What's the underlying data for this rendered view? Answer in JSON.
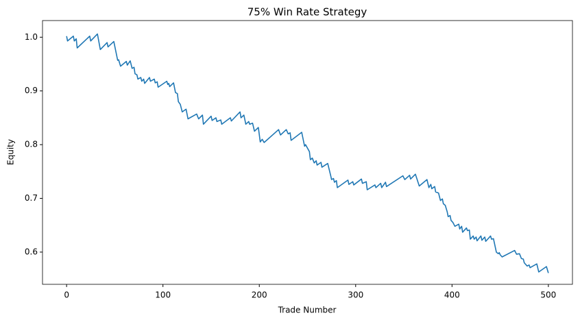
{
  "chart_data": {
    "type": "line",
    "title": "75% Win Rate Strategy",
    "x_label": "Trade Number",
    "y_label": "Equity",
    "x": [
      0,
      1,
      7,
      8,
      10,
      11,
      24,
      25,
      32,
      35,
      42,
      43,
      49,
      53,
      54,
      56,
      62,
      63,
      66,
      68,
      70,
      71,
      73,
      74,
      77,
      78,
      80,
      81,
      86,
      87,
      91,
      92,
      94,
      95,
      104,
      105,
      106,
      107,
      111,
      113,
      115,
      116,
      118,
      120,
      124,
      126,
      135,
      137,
      141,
      142,
      150,
      151,
      155,
      156,
      160,
      161,
      170,
      171,
      180,
      181,
      184,
      186,
      189,
      190,
      193,
      195,
      199,
      201,
      203,
      205,
      220,
      222,
      228,
      230,
      232,
      233,
      244,
      247,
      248,
      252,
      253,
      255,
      257,
      259,
      260,
      264,
      265,
      271,
      274,
      275,
      277,
      278,
      280,
      281,
      292,
      293,
      297,
      298,
      306,
      307,
      311,
      312,
      320,
      321,
      326,
      327,
      331,
      332,
      349,
      351,
      356,
      357,
      362,
      366,
      374,
      376,
      378,
      379,
      382,
      383,
      386,
      388,
      390,
      391,
      393,
      395,
      396,
      398,
      399,
      401,
      403,
      407,
      408,
      410,
      411,
      415,
      416,
      418,
      419,
      422,
      423,
      425,
      426,
      430,
      431,
      434,
      435,
      440,
      441,
      443,
      446,
      448,
      449,
      450,
      452,
      465,
      467,
      470,
      472,
      474,
      475,
      478,
      480,
      481,
      488,
      490,
      498,
      500
    ],
    "series": [
      {
        "name": "Equity",
        "color": "#1f77b4",
        "values": [
          1.002,
          0.993,
          1.002,
          0.993,
          0.997,
          0.98,
          1.002,
          0.993,
          1.006,
          0.977,
          0.99,
          0.982,
          0.992,
          0.957,
          0.958,
          0.946,
          0.955,
          0.948,
          0.956,
          0.942,
          0.944,
          0.932,
          0.93,
          0.922,
          0.925,
          0.918,
          0.922,
          0.914,
          0.925,
          0.918,
          0.922,
          0.915,
          0.917,
          0.907,
          0.918,
          0.912,
          0.914,
          0.908,
          0.915,
          0.897,
          0.895,
          0.88,
          0.875,
          0.861,
          0.866,
          0.848,
          0.857,
          0.848,
          0.855,
          0.838,
          0.853,
          0.845,
          0.85,
          0.843,
          0.846,
          0.838,
          0.85,
          0.844,
          0.861,
          0.85,
          0.855,
          0.838,
          0.843,
          0.838,
          0.84,
          0.825,
          0.832,
          0.805,
          0.81,
          0.804,
          0.828,
          0.818,
          0.828,
          0.82,
          0.822,
          0.808,
          0.823,
          0.797,
          0.8,
          0.787,
          0.772,
          0.775,
          0.766,
          0.77,
          0.762,
          0.767,
          0.758,
          0.765,
          0.743,
          0.735,
          0.737,
          0.73,
          0.733,
          0.72,
          0.734,
          0.726,
          0.731,
          0.725,
          0.736,
          0.728,
          0.731,
          0.716,
          0.725,
          0.72,
          0.728,
          0.72,
          0.73,
          0.722,
          0.742,
          0.735,
          0.743,
          0.736,
          0.745,
          0.723,
          0.735,
          0.72,
          0.726,
          0.718,
          0.722,
          0.712,
          0.71,
          0.696,
          0.699,
          0.69,
          0.687,
          0.675,
          0.666,
          0.668,
          0.659,
          0.655,
          0.648,
          0.652,
          0.643,
          0.648,
          0.637,
          0.645,
          0.64,
          0.641,
          0.624,
          0.63,
          0.624,
          0.628,
          0.621,
          0.63,
          0.622,
          0.628,
          0.62,
          0.63,
          0.624,
          0.625,
          0.6,
          0.597,
          0.599,
          0.595,
          0.591,
          0.603,
          0.596,
          0.597,
          0.588,
          0.587,
          0.58,
          0.574,
          0.576,
          0.571,
          0.578,
          0.563,
          0.573,
          0.561
        ]
      }
    ],
    "xlim": [
      -25,
      525
    ],
    "ylim": [
      0.54,
      1.031
    ],
    "xticks": [
      0,
      100,
      200,
      300,
      400,
      500
    ],
    "yticks": [
      0.6,
      0.7,
      0.8,
      0.9,
      {
        "value": 1,
        "label": "1.0"
      }
    ]
  }
}
